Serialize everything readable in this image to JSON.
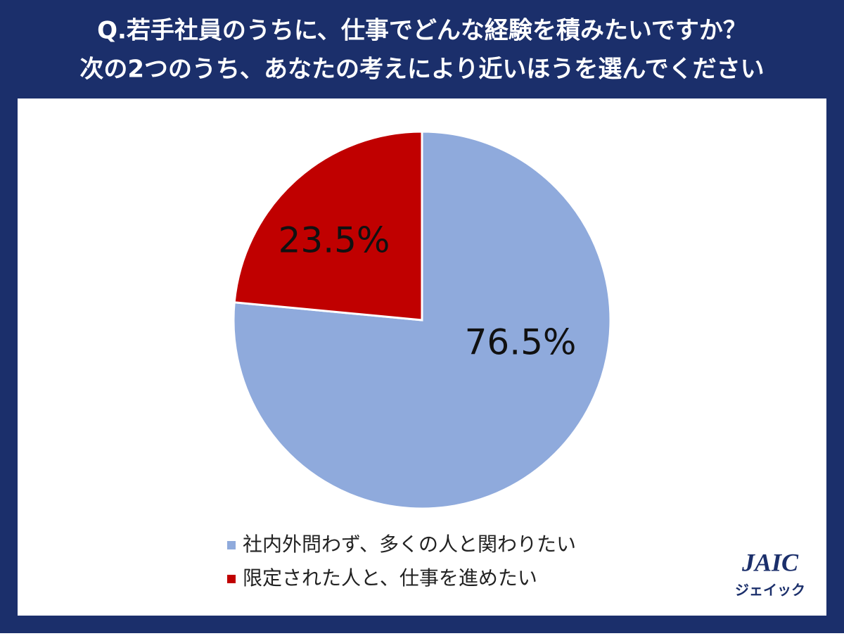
{
  "chart_data": {
    "type": "pie",
    "title": [
      "Q.若手社員のうちに、仕事でどんな経験を積みたいですか？",
      "次の2つのうち、あなたの考えにより近いほうを選んでください"
    ],
    "categories": [
      "社内外問わず、多くの人と関わりたい",
      "限定された人と、仕事を進めたい"
    ],
    "values": [
      76.5,
      23.5
    ],
    "value_labels": [
      "76.5%",
      "23.5%"
    ],
    "colors": [
      "#8faadc",
      "#c00000"
    ],
    "legend": "bottom"
  },
  "logo": {
    "text": "JAIC",
    "subtext": "ジェイック"
  }
}
